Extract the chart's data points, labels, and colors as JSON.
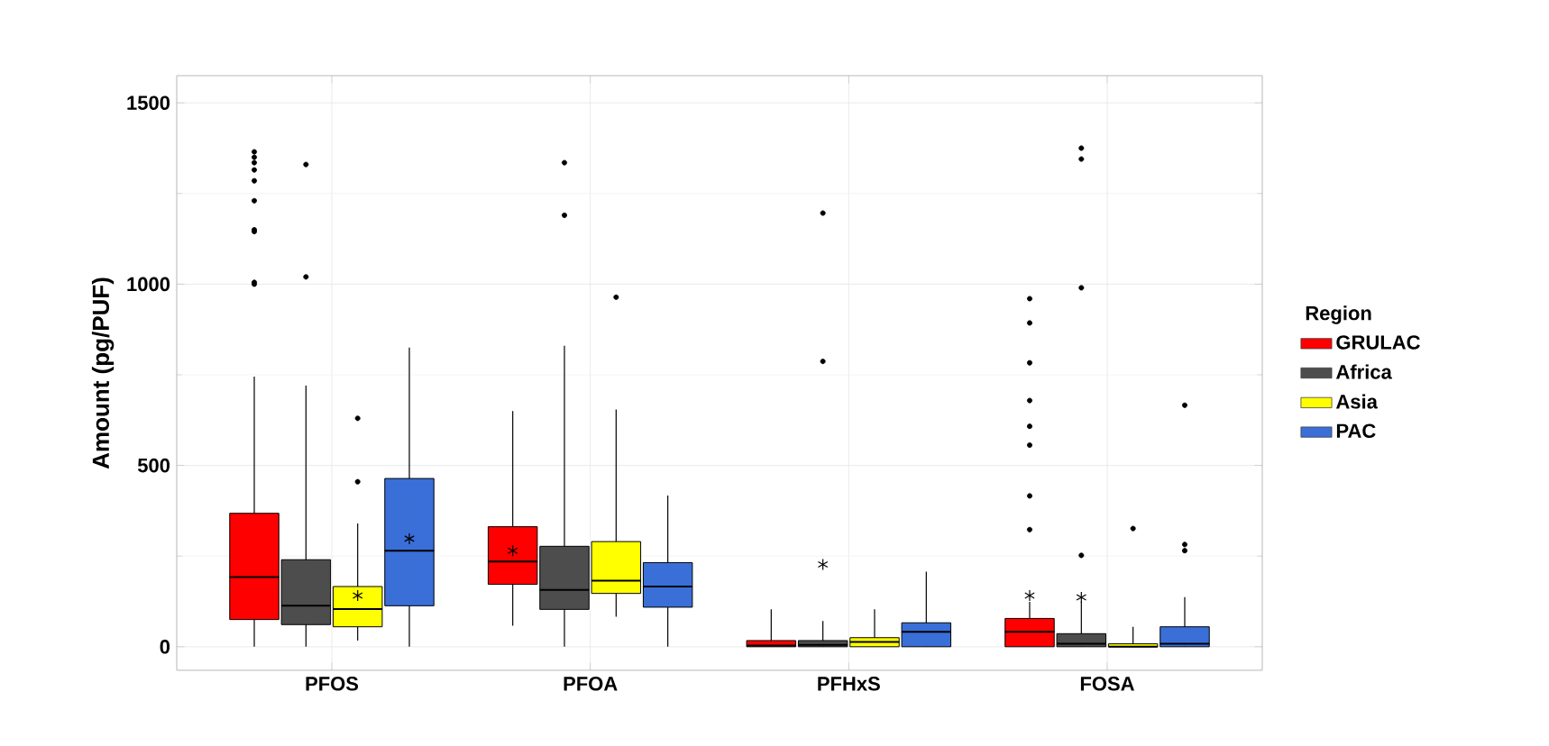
{
  "chart_data": {
    "type": "box",
    "ylabel": "Amount (pg/PUF)",
    "legend_title": "Region",
    "legend": "right",
    "grid": true,
    "marker": "circle",
    "categories": [
      "PFOS",
      "PFOA",
      "PFHxS",
      "FOSA"
    ],
    "ylim": [
      -65,
      1575
    ],
    "yticks": [
      0,
      500,
      1000,
      1500
    ],
    "series": [
      {
        "name": "GRULAC",
        "color": "#ff0000",
        "boxes": [
          {
            "low": 0,
            "q1": 75,
            "median": 192,
            "q3": 368,
            "high": 745,
            "outliers": [
              1000,
              1005,
              1145,
              1150,
              1230,
              1285,
              1315,
              1335,
              1350,
              1365
            ]
          },
          {
            "low": 58,
            "q1": 172,
            "median": 235,
            "q3": 331,
            "high": 650,
            "mean": 265
          },
          {
            "low": 0,
            "q1": 0,
            "median": 3,
            "q3": 17,
            "high": 103
          },
          {
            "low": 0,
            "q1": 0,
            "median": 41,
            "q3": 78,
            "high": 124,
            "mean": 141,
            "outliers": [
              323,
              416,
              556,
              608,
              679,
              783,
              893,
              960
            ]
          }
        ]
      },
      {
        "name": "Africa",
        "color": "#4d4d4d",
        "boxes": [
          {
            "low": 0,
            "q1": 61,
            "median": 113,
            "q3": 240,
            "high": 720,
            "outliers": [
              1020,
              1330
            ]
          },
          {
            "low": 0,
            "q1": 103,
            "median": 157,
            "q3": 277,
            "high": 830,
            "outliers": [
              1190,
              1335
            ]
          },
          {
            "low": 0,
            "q1": 0,
            "median": 5,
            "q3": 17,
            "high": 71,
            "mean": 227,
            "outliers": [
              787,
              1196
            ]
          },
          {
            "low": 0,
            "q1": 0,
            "median": 8,
            "q3": 36,
            "high": 124,
            "mean": 136,
            "outliers": [
              252,
              990,
              1345,
              1375
            ]
          }
        ]
      },
      {
        "name": "Asia",
        "color": "#ffff00",
        "boxes": [
          {
            "low": 17,
            "q1": 55,
            "median": 104,
            "q3": 166,
            "high": 340,
            "mean": 141,
            "outliers": [
              455,
              630
            ]
          },
          {
            "low": 83,
            "q1": 147,
            "median": 182,
            "q3": 290,
            "high": 654,
            "outliers": [
              964
            ]
          },
          {
            "low": 0,
            "q1": 0,
            "median": 13,
            "q3": 25,
            "high": 103
          },
          {
            "low": 0,
            "q1": 0,
            "median": 0,
            "q3": 8,
            "high": 55,
            "outliers": [
              326
            ]
          }
        ]
      },
      {
        "name": "PAC",
        "color": "#3a6fd8",
        "boxes": [
          {
            "low": 0,
            "q1": 113,
            "median": 265,
            "q3": 464,
            "high": 825,
            "mean": 298
          },
          {
            "low": 0,
            "q1": 109,
            "median": 166,
            "q3": 232,
            "high": 417
          },
          {
            "low": 0,
            "q1": 0,
            "median": 41,
            "q3": 66,
            "high": 207
          },
          {
            "low": 0,
            "q1": 0,
            "median": 8,
            "q3": 55,
            "high": 137,
            "outliers": [
              265,
              282,
              666
            ]
          }
        ]
      }
    ]
  }
}
